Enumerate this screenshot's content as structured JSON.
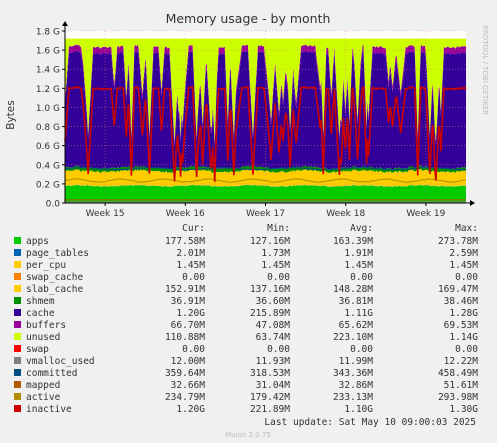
{
  "chart_data": {
    "type": "area",
    "title": "Memory usage - by month",
    "ylabel": "Bytes",
    "side_text": "RRDTOOL / TOBI OETIKER",
    "footer": "Munin 2.0.75",
    "last_update": "Last update: Sat May 10 09:00:03 2025",
    "ylim": [
      0,
      1800000000
    ],
    "y_ticks": [
      {
        "label": "0.0",
        "value": 0
      },
      {
        "label": "0.2 G",
        "value": 200000000
      },
      {
        "label": "0.4 G",
        "value": 400000000
      },
      {
        "label": "0.6 G",
        "value": 600000000
      },
      {
        "label": "0.8 G",
        "value": 800000000
      },
      {
        "label": "1.0 G",
        "value": 1000000000
      },
      {
        "label": "1.2 G",
        "value": 1200000000
      },
      {
        "label": "1.4 G",
        "value": 1400000000
      },
      {
        "label": "1.6 G",
        "value": 1600000000
      },
      {
        "label": "1.8 G",
        "value": 1800000000
      }
    ],
    "x_ticks": [
      "Week 15",
      "Week 16",
      "Week 17",
      "Week 18",
      "Week 19"
    ],
    "grid": true,
    "legend_position": "bottom",
    "columns": [
      "Cur:",
      "Min:",
      "Avg:",
      "Max:"
    ],
    "stacked_series": [
      "apps",
      "page_tables",
      "per_cpu",
      "swap_cache",
      "slab_cache",
      "shmem",
      "cache",
      "buffers",
      "unused",
      "swap"
    ],
    "line_series": [
      "inactive"
    ],
    "series": [
      {
        "name": "apps",
        "color": "#00cc00",
        "cur": "177.58M",
        "min": "127.16M",
        "avg": "163.39M",
        "max": "273.78M"
      },
      {
        "name": "page_tables",
        "color": "#0066b3",
        "cur": "2.01M",
        "min": "1.73M",
        "avg": "1.91M",
        "max": "2.59M"
      },
      {
        "name": "per_cpu",
        "color": "#ffcc00",
        "cur": "1.45M",
        "min": "1.45M",
        "avg": "1.45M",
        "max": "1.45M"
      },
      {
        "name": "swap_cache",
        "color": "#ff8000",
        "cur": "0.00",
        "min": "0.00",
        "avg": "0.00",
        "max": "0.00"
      },
      {
        "name": "slab_cache",
        "color": "#ffcc00",
        "cur": "152.91M",
        "min": "137.16M",
        "avg": "148.28M",
        "max": "169.47M"
      },
      {
        "name": "shmem",
        "color": "#008f00",
        "cur": "36.91M",
        "min": "36.60M",
        "avg": "36.81M",
        "max": "38.46M"
      },
      {
        "name": "cache",
        "color": "#330099",
        "cur": "1.20G",
        "min": "215.89M",
        "avg": "1.11G",
        "max": "1.28G"
      },
      {
        "name": "buffers",
        "color": "#990099",
        "cur": "66.70M",
        "min": "47.08M",
        "avg": "65.62M",
        "max": "69.53M"
      },
      {
        "name": "unused",
        "color": "#ccff00",
        "cur": "110.88M",
        "min": "63.74M",
        "avg": "223.10M",
        "max": "1.14G"
      },
      {
        "name": "swap",
        "color": "#ff0000",
        "cur": "0.00",
        "min": "0.00",
        "avg": "0.00",
        "max": "0.00"
      },
      {
        "name": "vmalloc_used",
        "color": "#808080",
        "cur": "12.00M",
        "min": "11.93M",
        "avg": "11.99M",
        "max": "12.22M"
      },
      {
        "name": "committed",
        "color": "#004d80",
        "cur": "359.64M",
        "min": "318.53M",
        "avg": "343.36M",
        "max": "458.49M"
      },
      {
        "name": "mapped",
        "color": "#b35a00",
        "cur": "32.66M",
        "min": "31.04M",
        "avg": "32.86M",
        "max": "51.61M"
      },
      {
        "name": "active",
        "color": "#b38f00",
        "cur": "234.79M",
        "min": "179.42M",
        "avg": "233.13M",
        "max": "293.98M"
      },
      {
        "name": "inactive",
        "color": "#cc0000",
        "cur": "1.20G",
        "min": "221.89M",
        "avg": "1.10G",
        "max": "1.30G"
      }
    ]
  }
}
